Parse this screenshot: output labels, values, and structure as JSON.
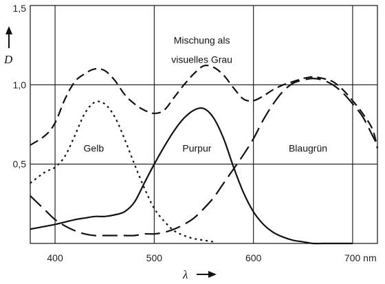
{
  "chart_data": {
    "type": "line",
    "xlabel": "λ",
    "ylabel": "D",
    "xlim": [
      375,
      725
    ],
    "ylim": [
      0,
      1.5
    ],
    "x_ticks": [
      400,
      500,
      600,
      700
    ],
    "x_tick_labels": [
      "400",
      "500",
      "600",
      "700 nm"
    ],
    "y_ticks": [
      0.5,
      1.0,
      1.5
    ],
    "y_tick_labels": [
      "0,5",
      "1,0",
      "1,5"
    ],
    "grid": true,
    "annotations": [
      {
        "text": "Mischung als",
        "x": 548,
        "y": 1.28
      },
      {
        "text": "visuelles Grau",
        "x": 548,
        "y": 1.16
      },
      {
        "text": "Gelb",
        "x": 439,
        "y": 0.6
      },
      {
        "text": "Purpur",
        "x": 543,
        "y": 0.6
      },
      {
        "text": "Blaugrün",
        "x": 655,
        "y": 0.6
      }
    ],
    "series": [
      {
        "name": "Mischung als visuelles Grau",
        "style": "dash",
        "x": [
          375,
          390,
          400,
          410,
          420,
          430,
          440,
          450,
          460,
          470,
          480,
          490,
          500,
          510,
          520,
          530,
          540,
          550,
          560,
          570,
          580,
          590,
          600,
          610,
          620,
          630,
          640,
          650,
          660,
          670,
          680,
          690,
          700,
          710,
          720,
          725
        ],
        "y": [
          0.62,
          0.68,
          0.76,
          0.91,
          1.02,
          1.07,
          1.1,
          1.09,
          1.03,
          0.94,
          0.88,
          0.84,
          0.82,
          0.84,
          0.92,
          1.0,
          1.07,
          1.12,
          1.11,
          1.06,
          0.98,
          0.91,
          0.9,
          0.93,
          0.97,
          1.0,
          1.02,
          1.04,
          1.05,
          1.04,
          1.02,
          0.97,
          0.9,
          0.82,
          0.72,
          0.6
        ]
      },
      {
        "name": "Gelb",
        "style": "dot",
        "x": [
          375,
          390,
          400,
          410,
          420,
          430,
          440,
          450,
          460,
          470,
          480,
          490,
          500,
          510,
          520,
          530,
          540,
          550,
          560
        ],
        "y": [
          0.38,
          0.45,
          0.48,
          0.55,
          0.68,
          0.82,
          0.89,
          0.88,
          0.8,
          0.66,
          0.5,
          0.35,
          0.22,
          0.14,
          0.08,
          0.05,
          0.03,
          0.02,
          0.01
        ]
      },
      {
        "name": "Purpur",
        "style": "solid",
        "x": [
          375,
          400,
          420,
          430,
          440,
          450,
          460,
          470,
          480,
          490,
          500,
          510,
          520,
          530,
          540,
          550,
          560,
          570,
          580,
          590,
          600,
          610,
          620,
          630,
          640,
          650,
          660,
          670,
          680,
          690,
          700
        ],
        "y": [
          0.09,
          0.12,
          0.15,
          0.16,
          0.17,
          0.17,
          0.18,
          0.2,
          0.26,
          0.38,
          0.5,
          0.61,
          0.71,
          0.79,
          0.84,
          0.85,
          0.79,
          0.66,
          0.48,
          0.32,
          0.2,
          0.12,
          0.07,
          0.04,
          0.02,
          0.01,
          0.0,
          0.0,
          0.0,
          0.0,
          0.0
        ]
      },
      {
        "name": "Blaugrün",
        "style": "longdash",
        "x": [
          375,
          390,
          400,
          410,
          420,
          430,
          440,
          450,
          460,
          470,
          480,
          490,
          500,
          510,
          520,
          530,
          540,
          550,
          560,
          570,
          580,
          590,
          600,
          610,
          620,
          630,
          640,
          650,
          660,
          670,
          680,
          690,
          700,
          710,
          720,
          725
        ],
        "y": [
          0.3,
          0.21,
          0.15,
          0.11,
          0.08,
          0.06,
          0.05,
          0.05,
          0.05,
          0.05,
          0.05,
          0.06,
          0.06,
          0.07,
          0.09,
          0.12,
          0.16,
          0.22,
          0.29,
          0.38,
          0.47,
          0.56,
          0.66,
          0.78,
          0.88,
          0.96,
          1.01,
          1.03,
          1.04,
          1.03,
          1.0,
          0.95,
          0.88,
          0.8,
          0.68,
          0.62
        ]
      }
    ]
  }
}
